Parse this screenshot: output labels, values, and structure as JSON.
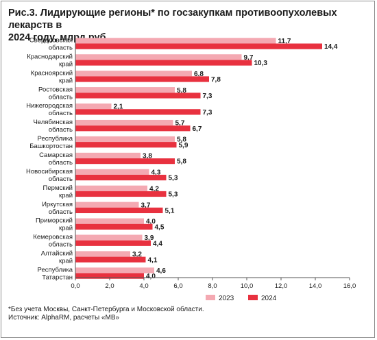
{
  "chart_data": {
    "type": "bar",
    "orientation": "horizontal",
    "title": "Рис.3. Лидирующие регионы* по госзакупкам противоопухолевых лекарств в\n2024 году, млрд руб.",
    "categories": [
      [
        "Свердловская",
        "область"
      ],
      [
        "Краснодарский",
        "край"
      ],
      [
        "Красноярский",
        "край"
      ],
      [
        "Ростовская",
        "область"
      ],
      [
        "Нижегородская",
        "область"
      ],
      [
        "Челябинская",
        "область"
      ],
      [
        "Республика",
        "Башкортостан"
      ],
      [
        "Самарская",
        "область"
      ],
      [
        "Новосибирская",
        "область"
      ],
      [
        "Пермский",
        "край"
      ],
      [
        "Иркутская",
        "область"
      ],
      [
        "Приморский",
        "край"
      ],
      [
        "Кемеровская",
        "область"
      ],
      [
        "Алтайский",
        "край"
      ],
      [
        "Республика",
        "Татарстан"
      ]
    ],
    "series": [
      {
        "name": "2023",
        "color": "#f4a9b2",
        "values": [
          11.7,
          9.7,
          6.8,
          5.8,
          2.1,
          5.7,
          5.8,
          3.8,
          4.3,
          4.2,
          3.7,
          4.0,
          3.9,
          3.2,
          4.6
        ],
        "labels": [
          "11,7",
          "9,7",
          "6,8",
          "5,8",
          "2,1",
          "5,7",
          "5,8",
          "3,8",
          "4,3",
          "4,2",
          "3,7",
          "4,0",
          "3,9",
          "3,2",
          "4,6"
        ]
      },
      {
        "name": "2024",
        "color": "#e8313f",
        "values": [
          14.4,
          10.3,
          7.8,
          7.3,
          7.3,
          6.7,
          5.9,
          5.8,
          5.3,
          5.3,
          5.1,
          4.5,
          4.4,
          4.1,
          4.0
        ],
        "labels": [
          "14,4",
          "10,3",
          "7,8",
          "7,3",
          "7,3",
          "6,7",
          "5,9",
          "5,8",
          "5,3",
          "5,3",
          "5,1",
          "4,5",
          "4,4",
          "4,1",
          "4,0"
        ]
      }
    ],
    "xlim": [
      0,
      16
    ],
    "xticks": [
      0,
      2,
      4,
      6,
      8,
      10,
      12,
      14,
      16
    ],
    "xtick_labels": [
      "0,0",
      "2,0",
      "4,0",
      "6,0",
      "8,0",
      "10,0",
      "12,0",
      "14,0",
      "16,0"
    ],
    "grid": false,
    "legend_position": "bottom-right"
  },
  "footnote": "*Без учета Москвы, Санкт-Петербурга и Московской области.",
  "source": "Источник: AlphaRM, расчеты «МВ»"
}
